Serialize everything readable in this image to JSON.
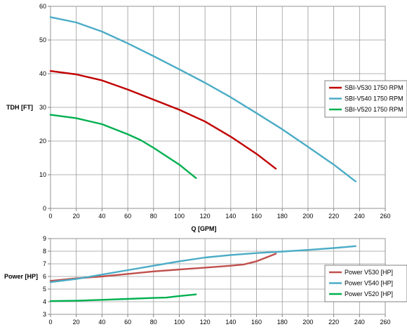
{
  "chart_data": [
    {
      "type": "line",
      "title": "",
      "xlabel": "Q [GPM]",
      "ylabel": "TDH [FT]",
      "xlim": [
        0,
        260
      ],
      "ylim": [
        0,
        60
      ],
      "x_ticks": [
        0,
        20,
        40,
        60,
        80,
        100,
        120,
        140,
        160,
        180,
        200,
        220,
        240,
        260
      ],
      "y_ticks": [
        0,
        10,
        20,
        30,
        40,
        50,
        60
      ],
      "grid": true,
      "legend_position": "right",
      "series": [
        {
          "name": "SBI-V530 1750 RPM",
          "color": "#c00000",
          "x": [
            0,
            20,
            40,
            60,
            80,
            100,
            120,
            140,
            160,
            175
          ],
          "y": [
            40.8,
            39.8,
            38.0,
            35.3,
            32.3,
            29.3,
            25.8,
            21.3,
            16.2,
            11.8
          ]
        },
        {
          "name": "SBI-V540 1750 RPM",
          "color": "#4bacc6",
          "x": [
            0,
            20,
            40,
            60,
            80,
            100,
            120,
            140,
            160,
            180,
            200,
            220,
            237
          ],
          "y": [
            56.8,
            55.2,
            52.5,
            49.0,
            45.2,
            41.3,
            37.3,
            33.0,
            28.3,
            23.5,
            18.3,
            13.0,
            8.0
          ]
        },
        {
          "name": "SBI-V520 1750 RPM",
          "color": "#00b050",
          "x": [
            0,
            20,
            40,
            60,
            70,
            80,
            100,
            113
          ],
          "y": [
            27.8,
            26.8,
            25.0,
            22.0,
            20.3,
            18.0,
            13.0,
            9.0
          ]
        }
      ]
    },
    {
      "type": "line",
      "title": "",
      "xlabel": "",
      "ylabel": "Power [HP]",
      "xlim": [
        0,
        260
      ],
      "ylim": [
        3,
        9
      ],
      "x_ticks": [
        0,
        20,
        40,
        60,
        80,
        100,
        120,
        140,
        160,
        180,
        200,
        220,
        240,
        260
      ],
      "y_ticks": [
        3,
        4,
        5,
        6,
        7,
        8,
        9
      ],
      "grid": true,
      "legend_position": "right",
      "series": [
        {
          "name": "Power V530 [HP]",
          "color": "#c0504d",
          "x": [
            0,
            20,
            40,
            60,
            80,
            100,
            120,
            140,
            150,
            160,
            175
          ],
          "y": [
            5.65,
            5.85,
            6.0,
            6.2,
            6.4,
            6.55,
            6.7,
            6.85,
            6.95,
            7.2,
            7.8
          ]
        },
        {
          "name": "Power V540 [HP]",
          "color": "#4bacc6",
          "x": [
            0,
            20,
            40,
            60,
            80,
            100,
            120,
            140,
            160,
            180,
            200,
            220,
            237
          ],
          "y": [
            5.55,
            5.8,
            6.15,
            6.5,
            6.85,
            7.2,
            7.5,
            7.7,
            7.85,
            7.97,
            8.1,
            8.25,
            8.4
          ]
        },
        {
          "name": "Power V520 [HP]",
          "color": "#00b050",
          "x": [
            0,
            20,
            40,
            60,
            80,
            90,
            100,
            113
          ],
          "y": [
            4.05,
            4.08,
            4.15,
            4.22,
            4.3,
            4.33,
            4.45,
            4.58
          ]
        }
      ]
    }
  ]
}
